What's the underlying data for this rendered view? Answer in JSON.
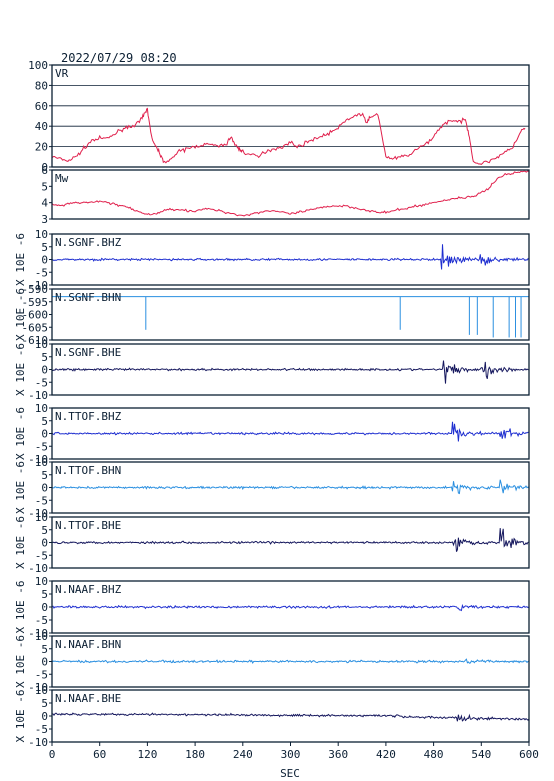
{
  "header": {
    "timestamp": "2022/07/29 08:20"
  },
  "colors": {
    "frame": "#0b1f33",
    "grid": "#0b1f33",
    "vr_line": "#e0204c",
    "mw_line": "#e0204c",
    "bhz": "#1f2fd0",
    "bhn": "#2a8fe0",
    "bhe": "#16185e"
  },
  "chart_data": [
    {
      "type": "line",
      "label": "VR",
      "ylim": [
        0,
        100
      ],
      "yticks": [
        "100",
        "80",
        "60",
        "40",
        "20",
        "0"
      ],
      "grid": true,
      "x": [
        0,
        10,
        20,
        30,
        40,
        50,
        60,
        70,
        80,
        90,
        100,
        110,
        115,
        120,
        125,
        130,
        135,
        140,
        150,
        160,
        170,
        180,
        190,
        200,
        210,
        220,
        225,
        230,
        235,
        240,
        250,
        260,
        270,
        280,
        290,
        300,
        310,
        320,
        330,
        340,
        350,
        360,
        370,
        380,
        390,
        395,
        400,
        410,
        420,
        430,
        440,
        450,
        460,
        470,
        480,
        490,
        500,
        510,
        520,
        525,
        530,
        540,
        550,
        560,
        570,
        580,
        590,
        595
      ],
      "y": [
        10,
        8,
        6,
        10,
        18,
        26,
        28,
        28,
        33,
        38,
        40,
        44,
        50,
        57,
        30,
        20,
        15,
        5,
        8,
        15,
        18,
        20,
        22,
        22,
        20,
        23,
        30,
        22,
        18,
        15,
        12,
        10,
        16,
        18,
        20,
        24,
        20,
        24,
        28,
        30,
        34,
        38,
        46,
        50,
        52,
        44,
        48,
        52,
        10,
        8,
        10,
        12,
        18,
        22,
        30,
        40,
        46,
        44,
        46,
        30,
        5,
        3,
        6,
        10,
        14,
        20,
        35,
        38
      ]
    },
    {
      "type": "line",
      "label": "Mw",
      "ylim": [
        3,
        6
      ],
      "yticks": [
        "6",
        "5",
        "4",
        "3"
      ],
      "grid": false,
      "x": [
        0,
        10,
        20,
        30,
        40,
        50,
        60,
        70,
        80,
        90,
        100,
        110,
        120,
        130,
        140,
        150,
        160,
        170,
        180,
        190,
        200,
        210,
        220,
        230,
        240,
        250,
        260,
        270,
        280,
        290,
        300,
        310,
        320,
        330,
        340,
        350,
        360,
        370,
        380,
        390,
        400,
        410,
        420,
        430,
        440,
        450,
        460,
        470,
        480,
        490,
        500,
        510,
        520,
        530,
        540,
        550,
        560,
        570,
        580,
        590,
        600
      ],
      "y": [
        3.9,
        3.8,
        3.9,
        4.0,
        4.0,
        4.0,
        4.1,
        4.0,
        3.9,
        3.8,
        3.6,
        3.4,
        3.3,
        3.3,
        3.5,
        3.6,
        3.6,
        3.5,
        3.5,
        3.6,
        3.6,
        3.5,
        3.4,
        3.3,
        3.2,
        3.3,
        3.4,
        3.5,
        3.5,
        3.4,
        3.3,
        3.4,
        3.5,
        3.6,
        3.7,
        3.8,
        3.8,
        3.8,
        3.7,
        3.6,
        3.5,
        3.4,
        3.4,
        3.5,
        3.6,
        3.7,
        3.8,
        3.9,
        4.0,
        4.1,
        4.2,
        4.3,
        4.3,
        4.4,
        4.6,
        4.9,
        5.5,
        5.7,
        5.8,
        5.9,
        5.9
      ]
    },
    {
      "type": "line",
      "label": "N.SGNF.BHZ",
      "ylabel": "X 10E -6",
      "ylim": [
        -10,
        10
      ],
      "yticks": [
        "10",
        "5",
        "0",
        "-5",
        "-10"
      ],
      "grid": false,
      "color_key": "bhz",
      "events": [
        {
          "t": 490,
          "amp": 6
        },
        {
          "t": 538,
          "amp": 3
        }
      ]
    },
    {
      "type": "line",
      "label": "N.SGNF.BHN",
      "ylabel": "X 10E -6",
      "ylim": [
        -610,
        -590
      ],
      "yticks": [
        "-590",
        "-595",
        "-600",
        "-605",
        "-610"
      ],
      "grid": false,
      "color_key": "bhn",
      "baseline": -593,
      "spikes": [
        {
          "t": 118,
          "to": -606
        },
        {
          "t": 438,
          "to": -606
        },
        {
          "t": 525,
          "to": -608
        },
        {
          "t": 535,
          "to": -608
        },
        {
          "t": 555,
          "to": -609
        },
        {
          "t": 575,
          "to": -609
        },
        {
          "t": 583,
          "to": -609
        },
        {
          "t": 590,
          "to": -609
        }
      ]
    },
    {
      "type": "line",
      "label": "N.SGNF.BHE",
      "ylabel": "X 10E -6",
      "ylim": [
        -10,
        10
      ],
      "yticks": [
        "10",
        "5",
        "0",
        "-5",
        "-10"
      ],
      "grid": false,
      "color_key": "bhe",
      "events": [
        {
          "t": 492,
          "amp": 4
        },
        {
          "t": 540,
          "amp": 6
        }
      ]
    },
    {
      "type": "line",
      "label": "N.TTOF.BHZ",
      "ylabel": "X 10E -6",
      "ylim": [
        -10,
        10
      ],
      "yticks": [
        "10",
        "5",
        "0",
        "-5",
        "-10"
      ],
      "grid": false,
      "color_key": "bhz",
      "events": [
        {
          "t": 503,
          "amp": 4
        },
        {
          "t": 563,
          "amp": 3
        }
      ]
    },
    {
      "type": "line",
      "label": "N.TTOF.BHN",
      "ylabel": "X 10E -6",
      "ylim": [
        -10,
        10
      ],
      "yticks": [
        "10",
        "5",
        "0",
        "-5",
        "-10"
      ],
      "grid": false,
      "color_key": "bhn",
      "events": [
        {
          "t": 503,
          "amp": 3
        },
        {
          "t": 563,
          "amp": 3
        }
      ]
    },
    {
      "type": "line",
      "label": "N.TTOF.BHE",
      "ylabel": "X 10E -6",
      "ylim": [
        -10,
        10
      ],
      "yticks": [
        "10",
        "5",
        "0",
        "-5",
        "-10"
      ],
      "grid": false,
      "color_key": "bhe",
      "events": [
        {
          "t": 505,
          "amp": 4
        },
        {
          "t": 563,
          "amp": 6
        }
      ]
    },
    {
      "type": "line",
      "label": "N.NAAF.BHZ",
      "ylabel": "X 10E -6",
      "ylim": [
        -10,
        10
      ],
      "yticks": [
        "10",
        "5",
        "0",
        "-5",
        "-10"
      ],
      "grid": false,
      "color_key": "bhz",
      "events": [
        {
          "t": 510,
          "amp": 1.2
        }
      ]
    },
    {
      "type": "line",
      "label": "N.NAAF.BHN",
      "ylabel": "X 10E -6",
      "ylim": [
        -10,
        10
      ],
      "yticks": [
        "10",
        "5",
        "0",
        "-5",
        "-10"
      ],
      "grid": false,
      "color_key": "bhn",
      "events": [
        {
          "t": 520,
          "amp": 1.0
        }
      ]
    },
    {
      "type": "line",
      "label": "N.NAAF.BHE",
      "ylabel": "X 10E -6",
      "ylim": [
        -10,
        10
      ],
      "yticks": [
        "10",
        "5",
        "0",
        "-5",
        "-10"
      ],
      "grid": false,
      "color_key": "bhe",
      "drift": true,
      "events": [
        {
          "t": 510,
          "amp": 1.2
        }
      ]
    }
  ],
  "x_axis": {
    "ticks": [
      "0",
      "60",
      "120",
      "180",
      "240",
      "300",
      "360",
      "420",
      "480",
      "540",
      "600"
    ],
    "label": "SEC",
    "xlim": [
      0,
      600
    ]
  }
}
